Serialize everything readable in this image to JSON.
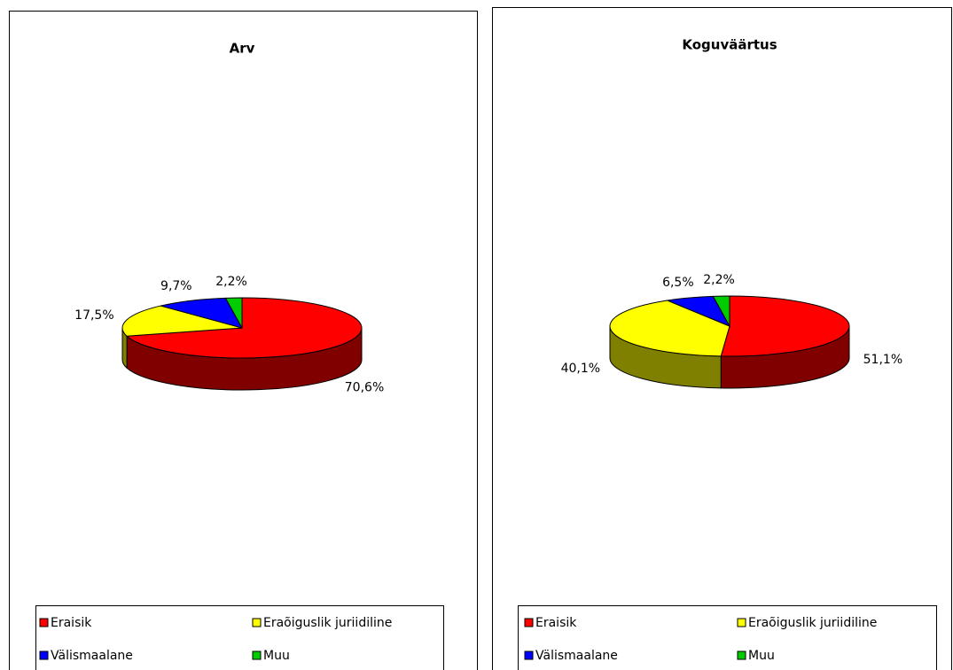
{
  "chart_data": [
    {
      "type": "pie",
      "title": "Arv",
      "categories": [
        "Eraisik",
        "Eraõiguslik juriidiline",
        "Välismaalane",
        "Muu"
      ],
      "values": [
        70.6,
        17.5,
        9.7,
        2.2
      ],
      "value_labels": [
        "70,6%",
        "17,5%",
        "9,7%",
        "2,2%"
      ],
      "colors": [
        "#ff0000",
        "#ffff00",
        "#0000ff",
        "#00cc00"
      ]
    },
    {
      "type": "pie",
      "title": "Koguväärtus",
      "categories": [
        "Eraisik",
        "Eraõiguslik juriidiline",
        "Välismaalane",
        "Muu"
      ],
      "values": [
        51.1,
        40.1,
        6.5,
        2.2
      ],
      "value_labels": [
        "51,1%",
        "40,1%",
        "6,5%",
        "2,2%"
      ],
      "colors": [
        "#ff0000",
        "#ffff00",
        "#0000ff",
        "#00cc00"
      ]
    }
  ]
}
